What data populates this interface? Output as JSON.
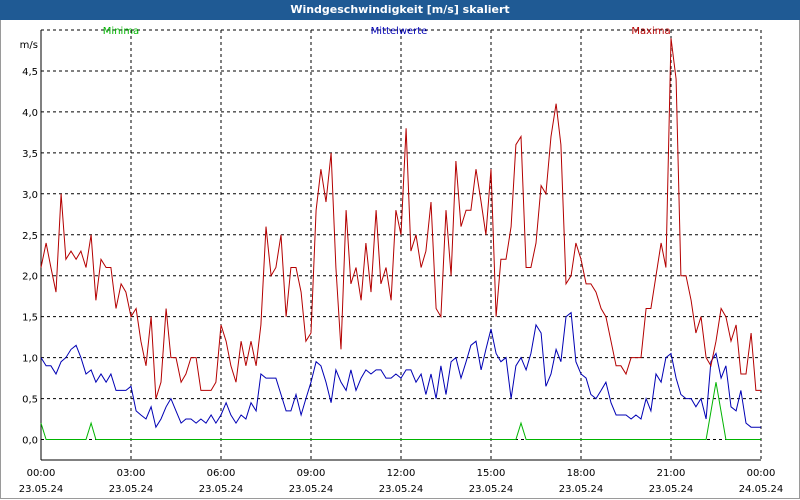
{
  "window": {
    "title": "Windgeschwindigkeit [m/s] skaliert"
  },
  "colors": {
    "title_bar": "#1f5a94",
    "minima": "#00b400",
    "mittelwerte": "#0000b4",
    "maxima": "#b40000",
    "grid": "#000000"
  },
  "chart_data": {
    "type": "line",
    "title": "Windgeschwindigkeit [m/s] skaliert",
    "ylabel": "m/s",
    "ylim": [
      -0.25,
      5.0
    ],
    "yticks": [
      "0.0",
      "0.5",
      "1.0",
      "1.5",
      "2.0",
      "2.5",
      "3.0",
      "3.5",
      "4.0",
      "4.5"
    ],
    "xlim": [
      0,
      24
    ],
    "xticks": [
      {
        "time": "00:00",
        "date": "23.05.24"
      },
      {
        "time": "03:00",
        "date": "23.05.24"
      },
      {
        "time": "06:00",
        "date": "23.05.24"
      },
      {
        "time": "09:00",
        "date": "23.05.24"
      },
      {
        "time": "12:00",
        "date": "23.05.24"
      },
      {
        "time": "15:00",
        "date": "23.05.24"
      },
      {
        "time": "18:00",
        "date": "23.05.24"
      },
      {
        "time": "21:00",
        "date": "23.05.24"
      },
      {
        "time": "00:00",
        "date": "24.05.24"
      }
    ],
    "grid": true,
    "legend_placement": "top",
    "series": [
      {
        "name": "Minima",
        "color": "#00b400",
        "points": [
          [
            0,
            0.2
          ],
          [
            0.17,
            0
          ],
          [
            1.5,
            0
          ],
          [
            1.67,
            0.2
          ],
          [
            1.83,
            0
          ],
          [
            15.83,
            0
          ],
          [
            16.0,
            0.2
          ],
          [
            16.17,
            0
          ],
          [
            22.17,
            0
          ],
          [
            22.5,
            0.7
          ],
          [
            22.83,
            0
          ],
          [
            24,
            0
          ]
        ]
      },
      {
        "name": "Mittelwerte",
        "color": "#0000b4",
        "points": [
          [
            0,
            1.0
          ],
          [
            0.17,
            0.9
          ],
          [
            0.33,
            0.9
          ],
          [
            0.5,
            0.8
          ],
          [
            0.67,
            0.95
          ],
          [
            0.83,
            1.0
          ],
          [
            1.0,
            1.1
          ],
          [
            1.17,
            1.15
          ],
          [
            1.33,
            1.0
          ],
          [
            1.5,
            0.8
          ],
          [
            1.67,
            0.85
          ],
          [
            1.83,
            0.7
          ],
          [
            2.0,
            0.8
          ],
          [
            2.17,
            0.7
          ],
          [
            2.33,
            0.8
          ],
          [
            2.5,
            0.6
          ],
          [
            2.67,
            0.6
          ],
          [
            2.83,
            0.6
          ],
          [
            3.0,
            0.65
          ],
          [
            3.17,
            0.35
          ],
          [
            3.33,
            0.3
          ],
          [
            3.5,
            0.25
          ],
          [
            3.67,
            0.4
          ],
          [
            3.83,
            0.15
          ],
          [
            4.0,
            0.25
          ],
          [
            4.17,
            0.4
          ],
          [
            4.33,
            0.5
          ],
          [
            4.5,
            0.35
          ],
          [
            4.67,
            0.2
          ],
          [
            4.83,
            0.25
          ],
          [
            5.0,
            0.25
          ],
          [
            5.17,
            0.2
          ],
          [
            5.33,
            0.25
          ],
          [
            5.5,
            0.2
          ],
          [
            5.67,
            0.3
          ],
          [
            5.83,
            0.2
          ],
          [
            6.0,
            0.3
          ],
          [
            6.17,
            0.45
          ],
          [
            6.33,
            0.3
          ],
          [
            6.5,
            0.2
          ],
          [
            6.67,
            0.3
          ],
          [
            6.83,
            0.25
          ],
          [
            7.0,
            0.45
          ],
          [
            7.17,
            0.35
          ],
          [
            7.33,
            0.8
          ],
          [
            7.5,
            0.75
          ],
          [
            7.67,
            0.75
          ],
          [
            7.83,
            0.75
          ],
          [
            8.0,
            0.55
          ],
          [
            8.17,
            0.35
          ],
          [
            8.33,
            0.35
          ],
          [
            8.5,
            0.55
          ],
          [
            8.67,
            0.3
          ],
          [
            8.83,
            0.5
          ],
          [
            9.0,
            0.7
          ],
          [
            9.17,
            0.95
          ],
          [
            9.33,
            0.9
          ],
          [
            9.5,
            0.7
          ],
          [
            9.67,
            0.45
          ],
          [
            9.83,
            0.85
          ],
          [
            10.0,
            0.7
          ],
          [
            10.17,
            0.6
          ],
          [
            10.33,
            0.85
          ],
          [
            10.5,
            0.6
          ],
          [
            10.67,
            0.75
          ],
          [
            10.83,
            0.85
          ],
          [
            11.0,
            0.8
          ],
          [
            11.17,
            0.85
          ],
          [
            11.33,
            0.85
          ],
          [
            11.5,
            0.75
          ],
          [
            11.67,
            0.75
          ],
          [
            11.83,
            0.8
          ],
          [
            12.0,
            0.75
          ],
          [
            12.17,
            0.85
          ],
          [
            12.33,
            0.85
          ],
          [
            12.5,
            0.7
          ],
          [
            12.67,
            0.8
          ],
          [
            12.83,
            0.55
          ],
          [
            13.0,
            0.8
          ],
          [
            13.17,
            0.5
          ],
          [
            13.33,
            0.9
          ],
          [
            13.5,
            0.55
          ],
          [
            13.67,
            0.95
          ],
          [
            13.83,
            1.0
          ],
          [
            14.0,
            0.75
          ],
          [
            14.17,
            0.95
          ],
          [
            14.33,
            1.15
          ],
          [
            14.5,
            1.2
          ],
          [
            14.67,
            0.85
          ],
          [
            14.83,
            1.1
          ],
          [
            15.0,
            1.35
          ],
          [
            15.17,
            1.05
          ],
          [
            15.33,
            0.95
          ],
          [
            15.5,
            1.0
          ],
          [
            15.67,
            0.5
          ],
          [
            15.83,
            0.9
          ],
          [
            16.0,
            1.0
          ],
          [
            16.17,
            0.85
          ],
          [
            16.33,
            1.05
          ],
          [
            16.5,
            1.4
          ],
          [
            16.67,
            1.3
          ],
          [
            16.83,
            0.65
          ],
          [
            17.0,
            0.8
          ],
          [
            17.17,
            1.1
          ],
          [
            17.33,
            0.95
          ],
          [
            17.5,
            1.5
          ],
          [
            17.67,
            1.55
          ],
          [
            17.83,
            0.95
          ],
          [
            18.0,
            0.8
          ],
          [
            18.17,
            0.75
          ],
          [
            18.33,
            0.55
          ],
          [
            18.5,
            0.5
          ],
          [
            18.67,
            0.6
          ],
          [
            18.83,
            0.7
          ],
          [
            19.0,
            0.45
          ],
          [
            19.17,
            0.3
          ],
          [
            19.33,
            0.3
          ],
          [
            19.5,
            0.3
          ],
          [
            19.67,
            0.25
          ],
          [
            19.83,
            0.3
          ],
          [
            20.0,
            0.25
          ],
          [
            20.17,
            0.5
          ],
          [
            20.33,
            0.35
          ],
          [
            20.5,
            0.8
          ],
          [
            20.67,
            0.7
          ],
          [
            20.83,
            1.0
          ],
          [
            21.0,
            1.05
          ],
          [
            21.17,
            0.75
          ],
          [
            21.33,
            0.55
          ],
          [
            21.5,
            0.5
          ],
          [
            21.67,
            0.5
          ],
          [
            21.83,
            0.4
          ],
          [
            22.0,
            0.5
          ],
          [
            22.17,
            0.25
          ],
          [
            22.33,
            0.95
          ],
          [
            22.5,
            1.05
          ],
          [
            22.67,
            0.75
          ],
          [
            22.83,
            0.9
          ],
          [
            23.0,
            0.4
          ],
          [
            23.17,
            0.35
          ],
          [
            23.33,
            0.6
          ],
          [
            23.5,
            0.2
          ],
          [
            23.67,
            0.15
          ],
          [
            24.0,
            0.15
          ]
        ]
      },
      {
        "name": "Maxima",
        "color": "#b40000",
        "points": [
          [
            0,
            2.1
          ],
          [
            0.17,
            2.4
          ],
          [
            0.33,
            2.1
          ],
          [
            0.5,
            1.8
          ],
          [
            0.67,
            3.0
          ],
          [
            0.83,
            2.2
          ],
          [
            1.0,
            2.3
          ],
          [
            1.17,
            2.2
          ],
          [
            1.33,
            2.3
          ],
          [
            1.5,
            2.1
          ],
          [
            1.67,
            2.5
          ],
          [
            1.83,
            1.7
          ],
          [
            2.0,
            2.2
          ],
          [
            2.17,
            2.1
          ],
          [
            2.33,
            2.1
          ],
          [
            2.5,
            1.6
          ],
          [
            2.67,
            1.9
          ],
          [
            2.83,
            1.8
          ],
          [
            3.0,
            1.5
          ],
          [
            3.17,
            1.6
          ],
          [
            3.33,
            1.2
          ],
          [
            3.5,
            0.9
          ],
          [
            3.67,
            1.5
          ],
          [
            3.83,
            0.5
          ],
          [
            4.0,
            0.7
          ],
          [
            4.17,
            1.6
          ],
          [
            4.33,
            1.0
          ],
          [
            4.5,
            1.0
          ],
          [
            4.67,
            0.7
          ],
          [
            4.83,
            0.8
          ],
          [
            5.0,
            1.0
          ],
          [
            5.17,
            1.0
          ],
          [
            5.33,
            0.6
          ],
          [
            5.5,
            0.6
          ],
          [
            5.67,
            0.6
          ],
          [
            5.83,
            0.7
          ],
          [
            6.0,
            1.4
          ],
          [
            6.17,
            1.2
          ],
          [
            6.33,
            0.9
          ],
          [
            6.5,
            0.7
          ],
          [
            6.67,
            1.2
          ],
          [
            6.83,
            0.9
          ],
          [
            7.0,
            1.2
          ],
          [
            7.17,
            0.9
          ],
          [
            7.33,
            1.4
          ],
          [
            7.5,
            2.6
          ],
          [
            7.67,
            2.0
          ],
          [
            7.83,
            2.1
          ],
          [
            8.0,
            2.5
          ],
          [
            8.17,
            1.5
          ],
          [
            8.33,
            2.1
          ],
          [
            8.5,
            2.1
          ],
          [
            8.67,
            1.8
          ],
          [
            8.83,
            1.2
          ],
          [
            9.0,
            1.3
          ],
          [
            9.17,
            2.8
          ],
          [
            9.33,
            3.3
          ],
          [
            9.5,
            2.9
          ],
          [
            9.67,
            3.5
          ],
          [
            9.83,
            2.1
          ],
          [
            10.0,
            1.1
          ],
          [
            10.17,
            2.8
          ],
          [
            10.33,
            1.9
          ],
          [
            10.5,
            2.1
          ],
          [
            10.67,
            1.7
          ],
          [
            10.83,
            2.4
          ],
          [
            11.0,
            1.8
          ],
          [
            11.17,
            2.8
          ],
          [
            11.33,
            1.9
          ],
          [
            11.5,
            2.1
          ],
          [
            11.67,
            1.7
          ],
          [
            11.83,
            2.8
          ],
          [
            12.0,
            2.5
          ],
          [
            12.17,
            3.8
          ],
          [
            12.33,
            2.3
          ],
          [
            12.5,
            2.5
          ],
          [
            12.67,
            2.1
          ],
          [
            12.83,
            2.3
          ],
          [
            13.0,
            2.9
          ],
          [
            13.17,
            1.6
          ],
          [
            13.33,
            1.5
          ],
          [
            13.5,
            2.8
          ],
          [
            13.67,
            2.0
          ],
          [
            13.83,
            3.4
          ],
          [
            14.0,
            2.6
          ],
          [
            14.17,
            2.8
          ],
          [
            14.33,
            2.8
          ],
          [
            14.5,
            3.3
          ],
          [
            14.67,
            2.9
          ],
          [
            14.83,
            2.5
          ],
          [
            15.0,
            3.3
          ],
          [
            15.17,
            1.5
          ],
          [
            15.33,
            2.2
          ],
          [
            15.5,
            2.2
          ],
          [
            15.67,
            2.6
          ],
          [
            15.83,
            3.6
          ],
          [
            16.0,
            3.7
          ],
          [
            16.17,
            2.1
          ],
          [
            16.33,
            2.1
          ],
          [
            16.5,
            2.4
          ],
          [
            16.67,
            3.1
          ],
          [
            16.83,
            3.0
          ],
          [
            17.0,
            3.7
          ],
          [
            17.17,
            4.1
          ],
          [
            17.33,
            3.6
          ],
          [
            17.5,
            1.9
          ],
          [
            17.67,
            2.0
          ],
          [
            17.83,
            2.4
          ],
          [
            18.0,
            2.2
          ],
          [
            18.17,
            1.9
          ],
          [
            18.33,
            1.9
          ],
          [
            18.5,
            1.8
          ],
          [
            18.67,
            1.6
          ],
          [
            18.83,
            1.5
          ],
          [
            19.0,
            1.2
          ],
          [
            19.17,
            0.9
          ],
          [
            19.33,
            0.9
          ],
          [
            19.5,
            0.8
          ],
          [
            19.67,
            1.0
          ],
          [
            19.83,
            1.0
          ],
          [
            20.0,
            1.0
          ],
          [
            20.17,
            1.6
          ],
          [
            20.33,
            1.6
          ],
          [
            20.5,
            2.0
          ],
          [
            20.67,
            2.4
          ],
          [
            20.83,
            2.1
          ],
          [
            21.0,
            4.9
          ],
          [
            21.17,
            4.4
          ],
          [
            21.33,
            2.0
          ],
          [
            21.5,
            2.0
          ],
          [
            21.67,
            1.7
          ],
          [
            21.83,
            1.3
          ],
          [
            22.0,
            1.5
          ],
          [
            22.17,
            1.0
          ],
          [
            22.33,
            0.9
          ],
          [
            22.5,
            1.2
          ],
          [
            22.67,
            1.6
          ],
          [
            22.83,
            1.5
          ],
          [
            23.0,
            1.2
          ],
          [
            23.17,
            1.4
          ],
          [
            23.33,
            0.8
          ],
          [
            23.5,
            0.8
          ],
          [
            23.67,
            1.3
          ],
          [
            23.83,
            0.6
          ],
          [
            24.0,
            0.6
          ]
        ]
      }
    ]
  }
}
